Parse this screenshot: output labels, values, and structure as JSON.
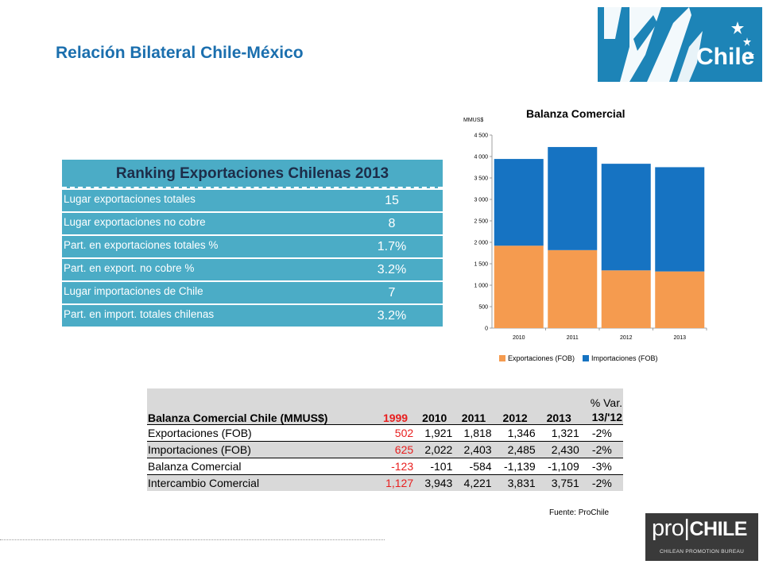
{
  "title": "Relación Bilateral Chile-México",
  "logo": {
    "text": "Chile"
  },
  "ranking": {
    "title": "Ranking Exportaciones Chilenas 2013",
    "rows": [
      {
        "label": "Lugar exportaciones totales",
        "value": "15"
      },
      {
        "label": "Lugar exportaciones no cobre",
        "value": "8"
      },
      {
        "label": "Part. en exportaciones totales %",
        "value": "1.7%"
      },
      {
        "label": "Part. en export. no cobre %",
        "value": "3.2%"
      },
      {
        "label": "Lugar importaciones de Chile",
        "value": "7"
      },
      {
        "label": "Part. en import. totales chilenas",
        "value": "3.2%"
      }
    ]
  },
  "chart_data": {
    "type": "bar",
    "stacked": true,
    "title": "Balanza Comercial",
    "ylabel": "MMUS$",
    "categories": [
      "2010",
      "2011",
      "2012",
      "2013"
    ],
    "series": [
      {
        "name": "Exportaciones (FOB)",
        "color": "#f59b4f",
        "values": [
          1921,
          1818,
          1346,
          1321
        ]
      },
      {
        "name": "Importaciones (FOB)",
        "color": "#1673c2",
        "values": [
          2022,
          2403,
          2485,
          2430
        ]
      }
    ],
    "ylim": [
      0,
      4500
    ],
    "yticks": [
      "4 500",
      "4 000",
      "3 500",
      "3 000",
      "2 500",
      "2 000",
      "1 500",
      "1 000",
      "500",
      "0"
    ],
    "grid": false,
    "legend": "bottom"
  },
  "balance": {
    "header": {
      "label": "Balanza Comercial Chile (MMUS$)",
      "years": [
        "1999",
        "2010",
        "2011",
        "2012",
        "2013"
      ],
      "var_top": "% Var.",
      "var_bottom": "13/'12"
    },
    "rows": [
      {
        "label": "Exportaciones (FOB)",
        "values": [
          "502",
          "1,921",
          "1,818",
          "1,346",
          "1,321"
        ],
        "var": "-2%"
      },
      {
        "label": "Importaciones (FOB)",
        "values": [
          "625",
          "2,022",
          "2,403",
          "2,485",
          "2,430"
        ],
        "var": "-2%"
      },
      {
        "label": "Balanza Comercial",
        "values": [
          "-123",
          "-101",
          "-584",
          "-1,139",
          "-1,109"
        ],
        "var": "-3%"
      },
      {
        "label": "Intercambio Comercial",
        "values": [
          "1,127",
          "3,943",
          "4,221",
          "3,831",
          "3,751"
        ],
        "var": "-2%"
      }
    ]
  },
  "source": "Fuente: ProChile",
  "prochile": {
    "pro": "pro",
    "chile": "CHILE",
    "sub": "CHILEAN PROMOTION BUREAU"
  }
}
